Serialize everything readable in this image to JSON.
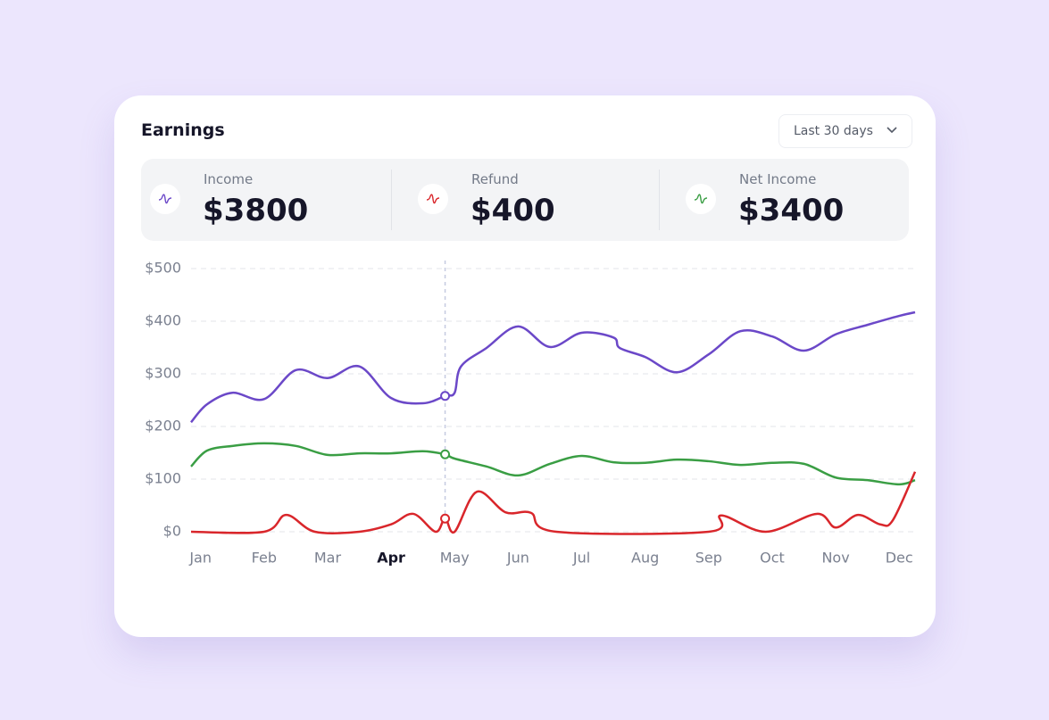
{
  "header": {
    "title": "Earnings",
    "dropdown": "Last 30 days"
  },
  "stats": [
    {
      "label": "Income",
      "value": "$3800"
    },
    {
      "label": "Refund",
      "value": "$400"
    },
    {
      "label": "Net Income",
      "value": "$3400"
    }
  ],
  "chart_data": {
    "type": "line",
    "xlim": [
      -0.15,
      11.25
    ],
    "xticks": [
      {
        "value": 0,
        "label": "Jan"
      },
      {
        "value": 1,
        "label": "Feb"
      },
      {
        "value": 2,
        "label": "Mar"
      },
      {
        "value": 3,
        "label": "Apr"
      },
      {
        "value": 4,
        "label": "May"
      },
      {
        "value": 5,
        "label": "Jun"
      },
      {
        "value": 6,
        "label": "Jul"
      },
      {
        "value": 7,
        "label": "Aug"
      },
      {
        "value": 8,
        "label": "Sep"
      },
      {
        "value": 9,
        "label": "Oct"
      },
      {
        "value": 10,
        "label": "Nov"
      },
      {
        "value": 11,
        "label": "Dec"
      }
    ],
    "active_xtick_index": 3,
    "cursor_x": 3.85,
    "ylim": [
      0,
      500
    ],
    "yticks": [
      {
        "value": 0,
        "label": "$0"
      },
      {
        "value": 100,
        "label": "$100"
      },
      {
        "value": 200,
        "label": "$200"
      },
      {
        "value": 300,
        "label": "$300"
      },
      {
        "value": 400,
        "label": "$400"
      },
      {
        "value": 500,
        "label": "$500"
      }
    ],
    "grid": true,
    "series": [
      {
        "name": "Income",
        "color": "#6b48c8",
        "x": [
          -0.15,
          0.1,
          0.5,
          1,
          1.5,
          2,
          2.5,
          3,
          3.5,
          3.85,
          4,
          4.1,
          4.5,
          5,
          5.5,
          6,
          6.5,
          6.6,
          7,
          7.5,
          8,
          8.5,
          9,
          9.5,
          10,
          10.5,
          11,
          11.25
        ],
        "values": [
          208,
          242,
          264,
          252,
          307,
          292,
          314,
          254,
          244,
          258,
          264,
          314,
          349,
          390,
          351,
          378,
          369,
          349,
          332,
          303,
          337,
          381,
          371,
          344,
          375,
          393,
          410,
          417
        ]
      },
      {
        "name": "Net Income",
        "color": "#3a9e44",
        "x": [
          -0.15,
          0.1,
          0.5,
          1,
          1.5,
          2,
          2.5,
          3,
          3.5,
          3.85,
          4,
          4.5,
          5,
          5.5,
          6,
          6.5,
          7,
          7.5,
          8,
          8.5,
          9,
          9.5,
          10,
          10.5,
          11,
          11.25
        ],
        "values": [
          124,
          154,
          163,
          168,
          163,
          146,
          149,
          149,
          153,
          147,
          139,
          124,
          107,
          129,
          144,
          132,
          131,
          137,
          134,
          127,
          131,
          129,
          103,
          98,
          90,
          98
        ]
      },
      {
        "name": "Refund",
        "color": "#d9262b",
        "x": [
          -0.15,
          1,
          1.35,
          1.8,
          2.5,
          3,
          3.35,
          3.7,
          3.85,
          4,
          4.35,
          4.8,
          5.2,
          5.6,
          8,
          8.2,
          8.9,
          9.7,
          10,
          10.35,
          10.7,
          10.9,
          11.25
        ],
        "values": [
          0,
          0,
          32,
          0,
          0,
          14,
          34,
          0,
          25,
          0,
          76,
          37,
          36,
          0,
          0,
          31,
          0,
          34,
          8,
          32,
          14,
          22,
          114
        ]
      }
    ]
  }
}
